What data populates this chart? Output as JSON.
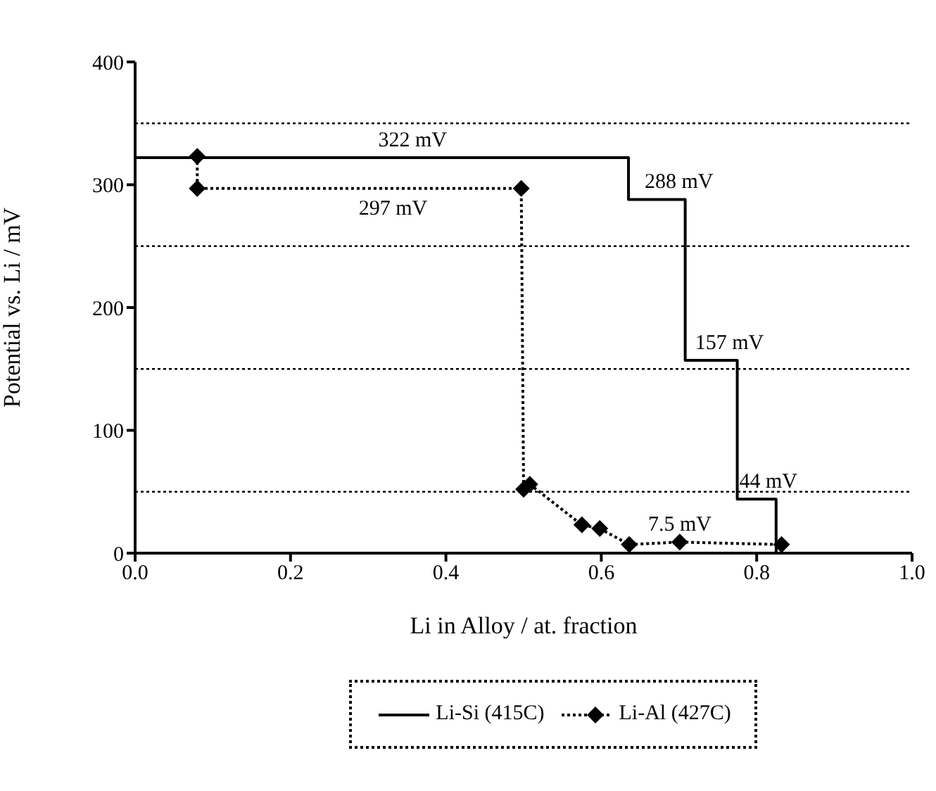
{
  "chart_data": {
    "type": "line",
    "xlabel": "Li in Alloy / at. fraction",
    "ylabel": "Potential vs. Li / mV",
    "xlim": [
      0,
      1
    ],
    "xticks": [
      {
        "value": 0,
        "label": "0.0"
      },
      {
        "value": 0.2,
        "label": "0.2"
      },
      {
        "value": 0.4,
        "label": "0.4"
      },
      {
        "value": 0.6,
        "label": "0.6"
      },
      {
        "value": 0.8,
        "label": "0.8"
      },
      {
        "value": 1,
        "label": "1.0"
      }
    ],
    "ylim": [
      0,
      400
    ],
    "yticks": [
      0,
      100,
      200,
      300,
      400
    ],
    "grid": false,
    "legend": "bottom",
    "series": [
      {
        "name": "Li-Si (415C)",
        "color": "#000000",
        "line_style": "solid",
        "marker": "none",
        "x": [
          0,
          0.635,
          0.635,
          0.708,
          0.708,
          0.775,
          0.775,
          0.825,
          0.825
        ],
        "values": [
          322,
          322,
          288,
          288,
          157,
          157,
          44,
          44,
          0
        ]
      },
      {
        "name": "Li-Al (427C)",
        "color": "#000000",
        "line_style": "dotted",
        "marker": "diamond",
        "x": [
          0.08,
          0.08,
          0.497,
          0.5,
          0.508,
          0.575,
          0.598,
          0.636,
          0.701,
          0.832
        ],
        "values": [
          323,
          297,
          297,
          52,
          56,
          23,
          20,
          7,
          9,
          7
        ]
      }
    ],
    "ref_lines": [
      {
        "axis": "y",
        "value": 50,
        "line_style": "dotted"
      },
      {
        "axis": "y",
        "value": 150,
        "line_style": "dotted"
      },
      {
        "axis": "y",
        "value": 250,
        "line_style": "dotted"
      },
      {
        "axis": "y",
        "value": 350,
        "line_style": "dotted"
      }
    ],
    "annotations": [
      {
        "text": "322 mV",
        "x": 0.357,
        "y": 322
      },
      {
        "text": "288 mV",
        "x": 0.7,
        "y": 288
      },
      {
        "text": "297 mV",
        "x": 0.332,
        "y": 297
      },
      {
        "text": "157 mV",
        "x": 0.765,
        "y": 157
      },
      {
        "text": "44 mV",
        "x": 0.815,
        "y": 44
      },
      {
        "text": "7.5 mV",
        "x": 0.701,
        "y": 9
      }
    ]
  }
}
